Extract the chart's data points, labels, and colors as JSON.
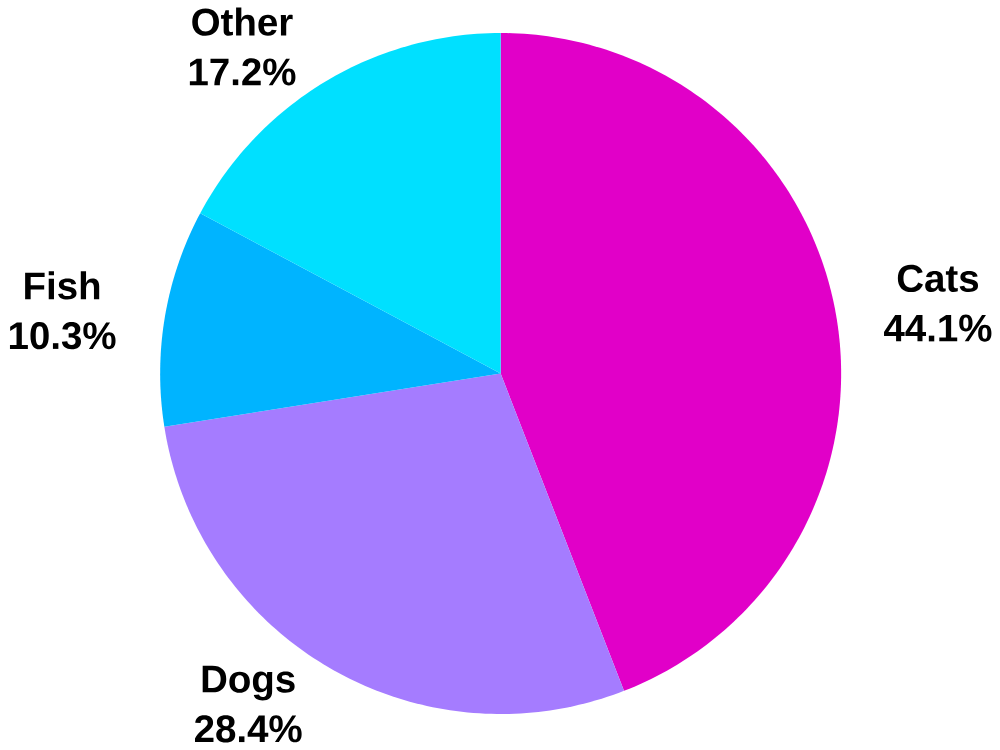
{
  "chart_data": {
    "type": "pie",
    "categories": [
      "Cats",
      "Dogs",
      "Fish",
      "Other"
    ],
    "values": [
      44.1,
      28.4,
      10.3,
      17.2
    ],
    "value_labels": [
      "44.1%",
      "28.4%",
      "10.3%",
      "17.2%"
    ],
    "colors": [
      "#e100c8",
      "#a57cff",
      "#00b4ff",
      "#00e0ff"
    ]
  }
}
